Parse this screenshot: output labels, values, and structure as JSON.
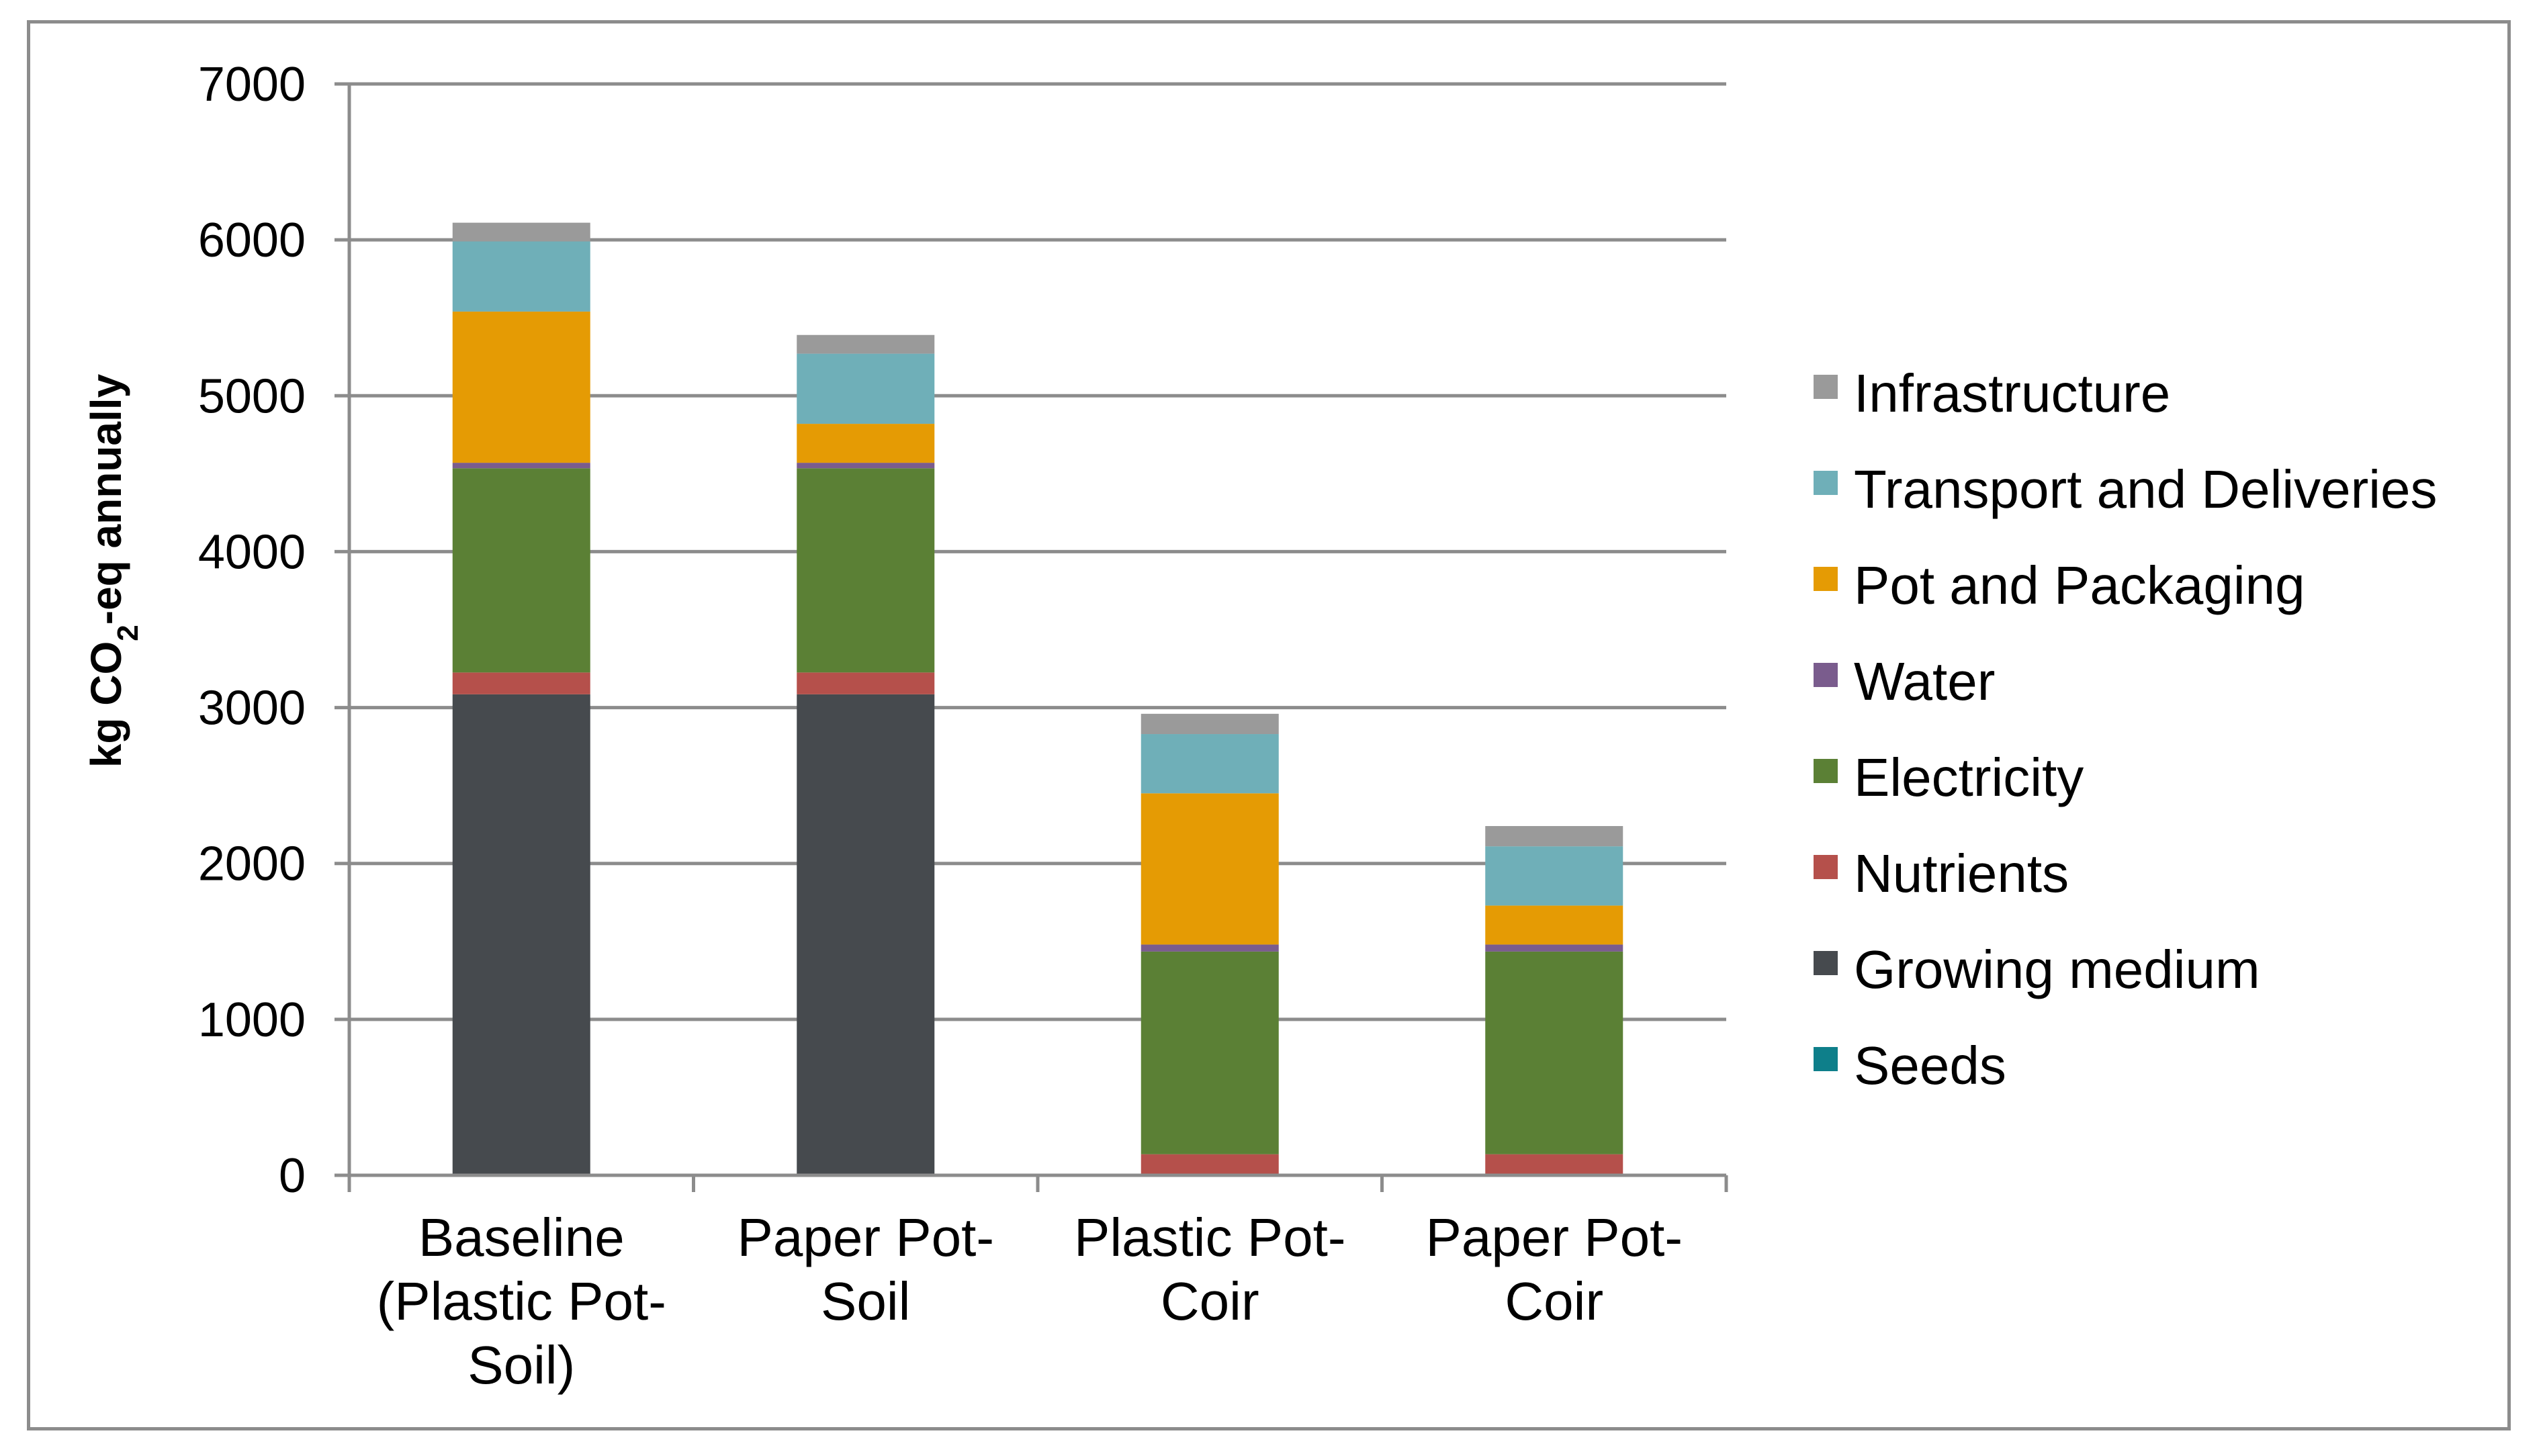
{
  "chart_data": {
    "type": "bar",
    "stacked": true,
    "title": "",
    "xlabel": "",
    "ylabel": {
      "main": "kg CO",
      "sub": "2",
      "tail": "-eq annually"
    },
    "ylim": [
      0,
      7000
    ],
    "yticks": [
      0,
      1000,
      2000,
      3000,
      4000,
      5000,
      6000,
      7000
    ],
    "grid": true,
    "legend_position": "right",
    "categories": [
      [
        "Baseline",
        "(Plastic Pot-",
        "Soil)"
      ],
      [
        "Paper Pot-",
        "Soil"
      ],
      [
        "Plastic Pot-",
        "Coir"
      ],
      [
        "Paper Pot-",
        "Coir"
      ]
    ],
    "series": [
      {
        "name": "Seeds",
        "color": "#0e7f8a",
        "values": [
          5,
          5,
          5,
          5
        ]
      },
      {
        "name": "Growing medium",
        "color": "#464a4e",
        "values": [
          3080,
          3080,
          0,
          0
        ]
      },
      {
        "name": "Nutrients",
        "color": "#b5504b",
        "values": [
          140,
          140,
          130,
          130
        ]
      },
      {
        "name": "Electricity",
        "color": "#5b8035",
        "values": [
          1310,
          1310,
          1300,
          1300
        ]
      },
      {
        "name": "Water",
        "color": "#7a5c8d",
        "values": [
          35,
          35,
          45,
          45
        ]
      },
      {
        "name": "Pot and Packaging",
        "color": "#e59b04",
        "values": [
          970,
          250,
          970,
          250
        ]
      },
      {
        "name": "Transport and Deliveries",
        "color": "#6fafb8",
        "values": [
          450,
          450,
          380,
          380
        ]
      },
      {
        "name": "Infrastructure",
        "color": "#9a9a9a",
        "values": [
          120,
          120,
          130,
          130
        ]
      }
    ]
  }
}
